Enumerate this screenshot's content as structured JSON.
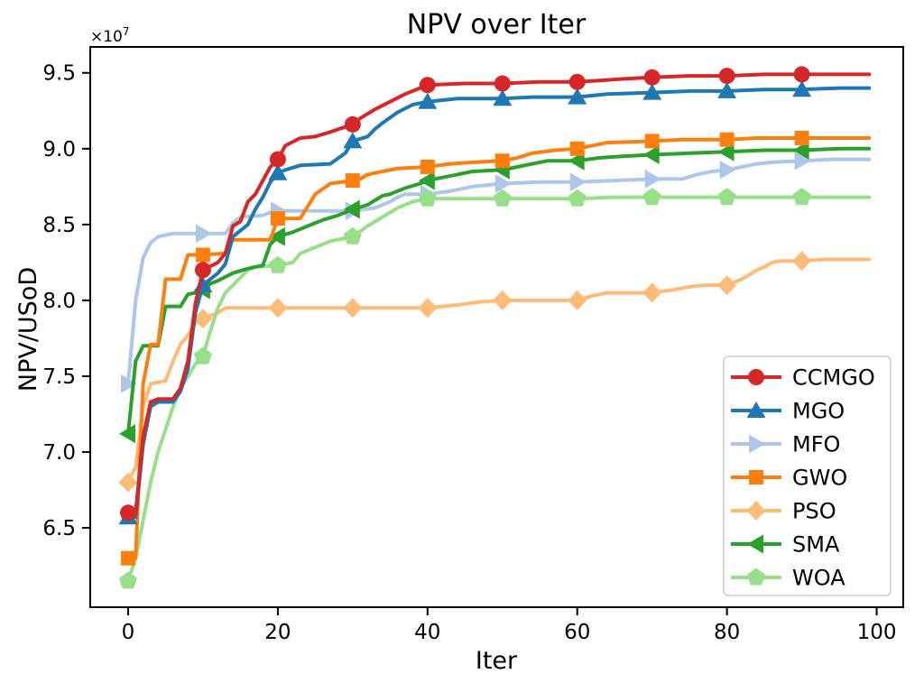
{
  "figure": {
    "title": "NPV over Iter",
    "xlabel": "Iter",
    "ylabel": "NPV/USoD",
    "offset_text": {
      "base": "×10",
      "exponent": "7"
    }
  },
  "legend": {
    "entries": [
      "CCMGO",
      "MGO",
      "MFO",
      "GWO",
      "PSO",
      "SMA",
      "WOA"
    ],
    "position": "lower right"
  },
  "chart_data": {
    "type": "line",
    "title": "NPV over Iter",
    "xlabel": "Iter",
    "ylabel": "NPV/USoD",
    "value_scale": "1e7",
    "y_offset_label": "×10^7",
    "grid": false,
    "legend_position": "lower right",
    "xlim": [
      -5.06,
      103.55
    ],
    "ylim": [
      5.977,
      9.671
    ],
    "xticks": [
      0,
      20,
      40,
      60,
      80,
      100
    ],
    "xtick_labels": [
      "0",
      "20",
      "40",
      "60",
      "80",
      "100"
    ],
    "yticks": [
      6.5,
      7.0,
      7.5,
      8.0,
      8.5,
      9.0,
      9.5
    ],
    "ytick_labels": [
      "6.5",
      "7.0",
      "7.5",
      "8.0",
      "8.5",
      "9.0",
      "9.5"
    ],
    "marker_every": 10,
    "draw_order": [
      "MFO",
      "PSO",
      "WOA",
      "SMA",
      "GWO",
      "MGO",
      "CCMGO"
    ],
    "series": [
      {
        "name": "CCMGO",
        "color": "#d62728",
        "marker": "circle",
        "points": [
          [
            0,
            6.6
          ],
          [
            1,
            6.6
          ],
          [
            2,
            7.1
          ],
          [
            3,
            7.33
          ],
          [
            4,
            7.35
          ],
          [
            6,
            7.35
          ],
          [
            7,
            7.42
          ],
          [
            8,
            7.6
          ],
          [
            9,
            7.98
          ],
          [
            10,
            8.2
          ],
          [
            12,
            8.25
          ],
          [
            13,
            8.31
          ],
          [
            14,
            8.49
          ],
          [
            15,
            8.52
          ],
          [
            16,
            8.65
          ],
          [
            17,
            8.7
          ],
          [
            18,
            8.79
          ],
          [
            19,
            8.88
          ],
          [
            20,
            8.93
          ],
          [
            21,
            9.02
          ],
          [
            23,
            9.07
          ],
          [
            25,
            9.08
          ],
          [
            27,
            9.11
          ],
          [
            30,
            9.16
          ],
          [
            31,
            9.2
          ],
          [
            33,
            9.26
          ],
          [
            35,
            9.31
          ],
          [
            37,
            9.36
          ],
          [
            39,
            9.4
          ],
          [
            40,
            9.42
          ],
          [
            45,
            9.43
          ],
          [
            50,
            9.43
          ],
          [
            55,
            9.44
          ],
          [
            60,
            9.44
          ],
          [
            63,
            9.45
          ],
          [
            66,
            9.46
          ],
          [
            70,
            9.47
          ],
          [
            75,
            9.48
          ],
          [
            80,
            9.48
          ],
          [
            85,
            9.49
          ],
          [
            90,
            9.49
          ],
          [
            99,
            9.49
          ]
        ]
      },
      {
        "name": "MGO",
        "color": "#1f77b4",
        "marker": "triangle-up",
        "points": [
          [
            0,
            6.57
          ],
          [
            1,
            6.57
          ],
          [
            2,
            7.05
          ],
          [
            3,
            7.3
          ],
          [
            4,
            7.33
          ],
          [
            6,
            7.33
          ],
          [
            7,
            7.4
          ],
          [
            8,
            7.55
          ],
          [
            9,
            7.92
          ],
          [
            10,
            8.1
          ],
          [
            12,
            8.18
          ],
          [
            13,
            8.24
          ],
          [
            14,
            8.42
          ],
          [
            16,
            8.5
          ],
          [
            17,
            8.6
          ],
          [
            18,
            8.68
          ],
          [
            19,
            8.78
          ],
          [
            20,
            8.84
          ],
          [
            21,
            8.86
          ],
          [
            23,
            8.89
          ],
          [
            27,
            8.9
          ],
          [
            29,
            8.97
          ],
          [
            30,
            9.05
          ],
          [
            32,
            9.08
          ],
          [
            33,
            9.13
          ],
          [
            34,
            9.17
          ],
          [
            36,
            9.24
          ],
          [
            38,
            9.29
          ],
          [
            40,
            9.31
          ],
          [
            44,
            9.33
          ],
          [
            50,
            9.33
          ],
          [
            54,
            9.34
          ],
          [
            60,
            9.34
          ],
          [
            64,
            9.36
          ],
          [
            70,
            9.37
          ],
          [
            75,
            9.38
          ],
          [
            80,
            9.38
          ],
          [
            85,
            9.39
          ],
          [
            90,
            9.39
          ],
          [
            95,
            9.4
          ],
          [
            99,
            9.4
          ]
        ]
      },
      {
        "name": "MFO",
        "color": "#aec7e8",
        "marker": "triangle-right",
        "points": [
          [
            0,
            7.45
          ],
          [
            1,
            8.0
          ],
          [
            2,
            8.28
          ],
          [
            3,
            8.38
          ],
          [
            4,
            8.42
          ],
          [
            5,
            8.43
          ],
          [
            6,
            8.44
          ],
          [
            10,
            8.44
          ],
          [
            13,
            8.44
          ],
          [
            14,
            8.51
          ],
          [
            15,
            8.55
          ],
          [
            18,
            8.56
          ],
          [
            19,
            8.58
          ],
          [
            20,
            8.59
          ],
          [
            30,
            8.59
          ],
          [
            33,
            8.61
          ],
          [
            35,
            8.65
          ],
          [
            36,
            8.68
          ],
          [
            37,
            8.7
          ],
          [
            40,
            8.7
          ],
          [
            43,
            8.72
          ],
          [
            46,
            8.75
          ],
          [
            50,
            8.77
          ],
          [
            55,
            8.78
          ],
          [
            60,
            8.78
          ],
          [
            65,
            8.79
          ],
          [
            70,
            8.8
          ],
          [
            74,
            8.8
          ],
          [
            76,
            8.83
          ],
          [
            78,
            8.85
          ],
          [
            80,
            8.86
          ],
          [
            82,
            8.88
          ],
          [
            84,
            8.9
          ],
          [
            86,
            8.91
          ],
          [
            90,
            8.92
          ],
          [
            94,
            8.93
          ],
          [
            99,
            8.93
          ]
        ]
      },
      {
        "name": "GWO",
        "color": "#ff7f0e",
        "marker": "square",
        "points": [
          [
            0,
            6.3
          ],
          [
            1,
            6.3
          ],
          [
            2,
            7.45
          ],
          [
            3,
            7.71
          ],
          [
            4,
            7.71
          ],
          [
            5,
            8.14
          ],
          [
            7,
            8.14
          ],
          [
            8,
            8.3
          ],
          [
            10,
            8.3
          ],
          [
            13,
            8.31
          ],
          [
            14,
            8.4
          ],
          [
            19,
            8.4
          ],
          [
            20,
            8.54
          ],
          [
            23,
            8.54
          ],
          [
            24,
            8.62
          ],
          [
            25,
            8.7
          ],
          [
            27,
            8.77
          ],
          [
            30,
            8.79
          ],
          [
            31,
            8.8
          ],
          [
            32,
            8.83
          ],
          [
            34,
            8.85
          ],
          [
            36,
            8.87
          ],
          [
            40,
            8.88
          ],
          [
            43,
            8.9
          ],
          [
            46,
            8.91
          ],
          [
            50,
            8.92
          ],
          [
            52,
            8.94
          ],
          [
            54,
            8.97
          ],
          [
            57,
            8.99
          ],
          [
            60,
            9.0
          ],
          [
            62,
            9.02
          ],
          [
            64,
            9.04
          ],
          [
            70,
            9.05
          ],
          [
            74,
            9.06
          ],
          [
            80,
            9.06
          ],
          [
            84,
            9.07
          ],
          [
            90,
            9.07
          ],
          [
            99,
            9.07
          ]
        ]
      },
      {
        "name": "PSO",
        "color": "#ffbb78",
        "marker": "diamond",
        "points": [
          [
            0,
            6.8
          ],
          [
            1,
            6.9
          ],
          [
            2,
            7.3
          ],
          [
            3,
            7.45
          ],
          [
            5,
            7.47
          ],
          [
            6,
            7.6
          ],
          [
            7,
            7.71
          ],
          [
            8,
            7.77
          ],
          [
            9,
            7.85
          ],
          [
            10,
            7.88
          ],
          [
            12,
            7.92
          ],
          [
            13,
            7.95
          ],
          [
            20,
            7.95
          ],
          [
            30,
            7.95
          ],
          [
            40,
            7.95
          ],
          [
            44,
            7.97
          ],
          [
            47,
            7.99
          ],
          [
            50,
            8.0
          ],
          [
            60,
            8.0
          ],
          [
            62,
            8.03
          ],
          [
            64,
            8.05
          ],
          [
            70,
            8.05
          ],
          [
            73,
            8.07
          ],
          [
            75,
            8.09
          ],
          [
            77,
            8.1
          ],
          [
            80,
            8.1
          ],
          [
            82,
            8.14
          ],
          [
            83,
            8.17
          ],
          [
            84,
            8.2
          ],
          [
            85,
            8.22
          ],
          [
            86,
            8.25
          ],
          [
            87,
            8.26
          ],
          [
            90,
            8.26
          ],
          [
            93,
            8.27
          ],
          [
            99,
            8.27
          ]
        ]
      },
      {
        "name": "SMA",
        "color": "#2ca02c",
        "marker": "triangle-left",
        "points": [
          [
            0,
            7.12
          ],
          [
            1,
            7.6
          ],
          [
            2,
            7.7
          ],
          [
            4,
            7.7
          ],
          [
            5,
            7.96
          ],
          [
            7,
            7.96
          ],
          [
            8,
            8.04
          ],
          [
            9,
            8.05
          ],
          [
            10,
            8.07
          ],
          [
            11,
            8.11
          ],
          [
            12,
            8.13
          ],
          [
            14,
            8.18
          ],
          [
            16,
            8.21
          ],
          [
            18,
            8.23
          ],
          [
            19,
            8.37
          ],
          [
            20,
            8.42
          ],
          [
            22,
            8.45
          ],
          [
            24,
            8.49
          ],
          [
            26,
            8.53
          ],
          [
            28,
            8.56
          ],
          [
            30,
            8.6
          ],
          [
            32,
            8.63
          ],
          [
            34,
            8.69
          ],
          [
            35,
            8.7
          ],
          [
            37,
            8.74
          ],
          [
            39,
            8.77
          ],
          [
            40,
            8.79
          ],
          [
            42,
            8.81
          ],
          [
            44,
            8.83
          ],
          [
            46,
            8.85
          ],
          [
            50,
            8.86
          ],
          [
            52,
            8.88
          ],
          [
            54,
            8.9
          ],
          [
            56,
            8.92
          ],
          [
            60,
            8.92
          ],
          [
            63,
            8.94
          ],
          [
            66,
            8.95
          ],
          [
            70,
            8.96
          ],
          [
            75,
            8.97
          ],
          [
            80,
            8.98
          ],
          [
            85,
            8.99
          ],
          [
            90,
            8.99
          ],
          [
            95,
            9.0
          ],
          [
            99,
            9.0
          ]
        ]
      },
      {
        "name": "WOA",
        "color": "#98df8a",
        "marker": "pentagon",
        "points": [
          [
            0,
            6.15
          ],
          [
            1,
            6.3
          ],
          [
            2,
            6.55
          ],
          [
            3,
            6.8
          ],
          [
            4,
            7.0
          ],
          [
            5,
            7.15
          ],
          [
            6,
            7.3
          ],
          [
            7,
            7.42
          ],
          [
            8,
            7.5
          ],
          [
            9,
            7.58
          ],
          [
            10,
            7.63
          ],
          [
            11,
            7.8
          ],
          [
            12,
            7.95
          ],
          [
            13,
            8.05
          ],
          [
            15,
            8.15
          ],
          [
            16,
            8.2
          ],
          [
            17,
            8.22
          ],
          [
            20,
            8.23
          ],
          [
            22,
            8.25
          ],
          [
            23,
            8.31
          ],
          [
            25,
            8.35
          ],
          [
            27,
            8.39
          ],
          [
            30,
            8.42
          ],
          [
            32,
            8.49
          ],
          [
            34,
            8.55
          ],
          [
            36,
            8.61
          ],
          [
            38,
            8.65
          ],
          [
            40,
            8.67
          ],
          [
            50,
            8.67
          ],
          [
            60,
            8.67
          ],
          [
            65,
            8.68
          ],
          [
            70,
            8.68
          ],
          [
            80,
            8.68
          ],
          [
            90,
            8.68
          ],
          [
            99,
            8.68
          ]
        ]
      }
    ]
  }
}
